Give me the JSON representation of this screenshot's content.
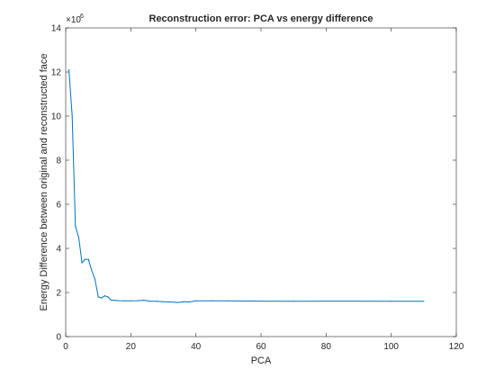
{
  "chart_data": {
    "type": "line",
    "title": "Reconstruction error: PCA vs energy difference",
    "xlabel": "PCA",
    "ylabel": "Energy Difference between original and reconstructed face",
    "xlim": [
      0,
      120
    ],
    "ylim": [
      0,
      14
    ],
    "x_ticks": [
      0,
      20,
      40,
      60,
      80,
      100,
      120
    ],
    "y_ticks": [
      0,
      2,
      4,
      6,
      8,
      10,
      12,
      14
    ],
    "x_tick_labels": [
      "0",
      "20",
      "40",
      "60",
      "80",
      "100",
      "120"
    ],
    "y_tick_labels": [
      "0",
      "2",
      "4",
      "6",
      "8",
      "10",
      "12",
      "14"
    ],
    "y_exponent_base": "×10",
    "y_exponent_power": "6",
    "grid": false,
    "line_color": "#0072BD",
    "series": [
      {
        "x": [
          1,
          2,
          3,
          4,
          5,
          6,
          7,
          8,
          9,
          10,
          11,
          12,
          13,
          14,
          15,
          16,
          18,
          20,
          22,
          24,
          26,
          28,
          30,
          32,
          34,
          35,
          36,
          38,
          40,
          45,
          50,
          60,
          70,
          80,
          90,
          100,
          110
        ],
        "y": [
          12.1,
          10.0,
          5.0,
          4.5,
          3.35,
          3.5,
          3.5,
          3.0,
          2.6,
          1.8,
          1.75,
          1.85,
          1.8,
          1.65,
          1.65,
          1.63,
          1.62,
          1.62,
          1.63,
          1.65,
          1.6,
          1.6,
          1.58,
          1.57,
          1.55,
          1.55,
          1.58,
          1.57,
          1.62,
          1.62,
          1.62,
          1.61,
          1.6,
          1.61,
          1.61,
          1.6,
          1.6
        ]
      }
    ]
  }
}
